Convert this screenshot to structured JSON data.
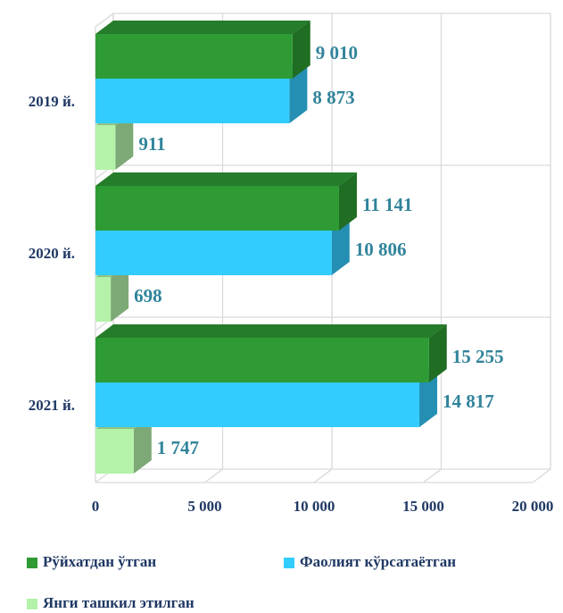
{
  "chart_data": {
    "type": "bar",
    "orientation": "horizontal",
    "categories": [
      "2019 й.",
      "2020 й.",
      "2021 й."
    ],
    "series": [
      {
        "name": "Рўйхатдан ўтган",
        "color": "#2e9b34",
        "values": [
          9010,
          11141,
          15255
        ],
        "value_labels": [
          "9 010",
          "11 141",
          "15 255"
        ]
      },
      {
        "name": "Фаолият кўрсатаётган",
        "color": "#33ccff",
        "values": [
          8873,
          10806,
          14817
        ],
        "value_labels": [
          "8 873",
          "10 806",
          "14 817"
        ]
      },
      {
        "name": "Янги ташкил этилган",
        "color": "#b3f2a8",
        "values": [
          911,
          698,
          1747
        ],
        "value_labels": [
          "911",
          "698",
          "1 747"
        ]
      }
    ],
    "xlim": [
      0,
      20000
    ],
    "xticks": [
      0,
      {
        "value": 5000,
        "label": "5 000"
      },
      {
        "value": 10000,
        "label": "10 000"
      },
      {
        "value": 15000,
        "label": "15 000"
      },
      {
        "value": 20000,
        "label": "20 000"
      }
    ],
    "grid": true
  }
}
